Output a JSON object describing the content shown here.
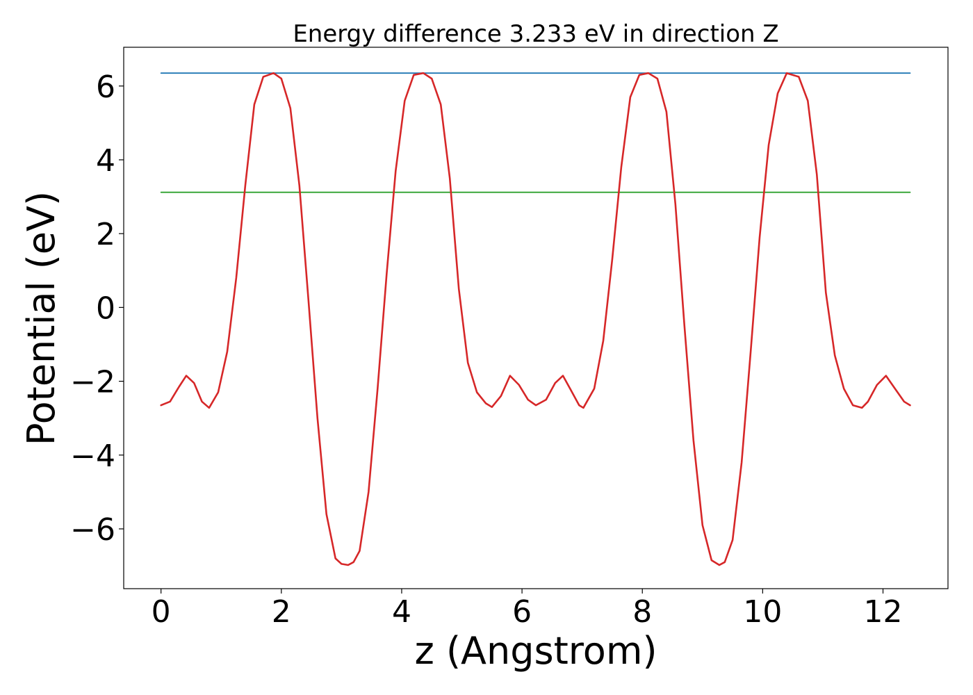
{
  "chart_data": {
    "type": "line",
    "title": "Energy difference 3.233 eV in direction Z",
    "xlabel": "z (Angstrom)",
    "ylabel": "Potential (eV)",
    "xlim": [
      -0.62,
      13.08
    ],
    "ylim": [
      -7.62,
      7.05
    ],
    "x_ticks": [
      0,
      2,
      4,
      6,
      8,
      10,
      12
    ],
    "y_ticks": [
      -6,
      -4,
      -2,
      0,
      2,
      4,
      6
    ],
    "x_tick_labels": [
      "0",
      "2",
      "4",
      "6",
      "8",
      "10",
      "12"
    ],
    "y_tick_labels": [
      "−6",
      "−4",
      "−2",
      "0",
      "2",
      "4",
      "6"
    ],
    "grid": false,
    "series": [
      {
        "color": "#1f77b4",
        "x": [
          0,
          12.45
        ],
        "y": [
          6.35,
          6.35
        ]
      },
      {
        "color": "#2ca02c",
        "x": [
          0,
          12.45
        ],
        "y": [
          3.12,
          3.12
        ]
      },
      {
        "color": "#d62728",
        "x": [
          0,
          0.15,
          0.3,
          0.42,
          0.55,
          0.68,
          0.8,
          0.95,
          1.1,
          1.25,
          1.4,
          1.55,
          1.7,
          1.87,
          2.0,
          2.15,
          2.3,
          2.45,
          2.6,
          2.75,
          2.9,
          3.0,
          3.11,
          3.2,
          3.3,
          3.45,
          3.6,
          3.75,
          3.9,
          4.05,
          4.2,
          4.36,
          4.5,
          4.65,
          4.8,
          4.95,
          5.1,
          5.25,
          5.4,
          5.5,
          5.65,
          5.8,
          5.95,
          6.1,
          6.23,
          6.4,
          6.55,
          6.68,
          6.8,
          6.95,
          7.02,
          7.2,
          7.35,
          7.5,
          7.65,
          7.8,
          7.95,
          8.1,
          8.25,
          8.4,
          8.55,
          8.7,
          8.85,
          9.0,
          9.15,
          9.28,
          9.37,
          9.5,
          9.65,
          9.8,
          9.95,
          10.1,
          10.25,
          10.4,
          10.6,
          10.75,
          10.9,
          11.05,
          11.2,
          11.35,
          11.5,
          11.65,
          11.75,
          11.9,
          12.05,
          12.2,
          12.35,
          12.45
        ],
        "y": [
          -2.65,
          -2.55,
          -2.15,
          -1.85,
          -2.05,
          -2.55,
          -2.72,
          -2.3,
          -1.2,
          0.8,
          3.3,
          5.5,
          6.25,
          6.35,
          6.2,
          5.4,
          3.3,
          0.2,
          -3.0,
          -5.6,
          -6.8,
          -6.95,
          -6.98,
          -6.9,
          -6.6,
          -5.0,
          -2.2,
          0.9,
          3.7,
          5.6,
          6.3,
          6.35,
          6.2,
          5.5,
          3.5,
          0.5,
          -1.5,
          -2.3,
          -2.6,
          -2.7,
          -2.4,
          -1.85,
          -2.1,
          -2.5,
          -2.65,
          -2.5,
          -2.05,
          -1.85,
          -2.2,
          -2.65,
          -2.72,
          -2.2,
          -0.9,
          1.3,
          3.8,
          5.7,
          6.3,
          6.35,
          6.2,
          5.3,
          2.8,
          -0.5,
          -3.6,
          -5.9,
          -6.85,
          -6.98,
          -6.9,
          -6.3,
          -4.2,
          -1.2,
          1.9,
          4.4,
          5.8,
          6.35,
          6.25,
          5.6,
          3.6,
          0.4,
          -1.3,
          -2.2,
          -2.65,
          -2.72,
          -2.55,
          -2.1,
          -1.85,
          -2.2,
          -2.55,
          -2.65
        ]
      }
    ]
  }
}
